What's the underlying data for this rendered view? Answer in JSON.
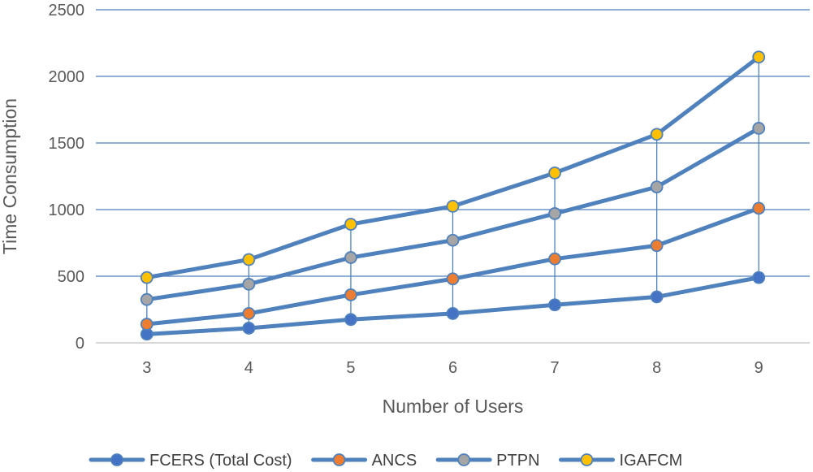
{
  "chart_data": {
    "type": "line",
    "title": "",
    "xlabel": "Number of Users",
    "ylabel": "Time Consumption",
    "categories": [
      "3",
      "4",
      "5",
      "6",
      "7",
      "8",
      "9"
    ],
    "ylim": [
      0,
      2500
    ],
    "yticks": [
      "0",
      "500",
      "1000",
      "1500",
      "2000",
      "2500"
    ],
    "grid": true,
    "legend_position": "bottom",
    "drop_lines": true,
    "line_color": "#4F81BD",
    "series": [
      {
        "name": "FCERS (Total Cost)",
        "values": [
          65,
          110,
          175,
          220,
          285,
          345,
          490
        ],
        "marker_color": "#4472C4"
      },
      {
        "name": "ANCS",
        "values": [
          140,
          220,
          360,
          480,
          630,
          730,
          1010
        ],
        "marker_color": "#ED7D31"
      },
      {
        "name": "PTPN",
        "values": [
          325,
          440,
          640,
          770,
          970,
          1170,
          1610
        ],
        "marker_color": "#A5A5A5"
      },
      {
        "name": "IGAFCM",
        "values": [
          490,
          625,
          890,
          1025,
          1275,
          1565,
          2145
        ],
        "marker_color": "#FFC000"
      }
    ]
  }
}
